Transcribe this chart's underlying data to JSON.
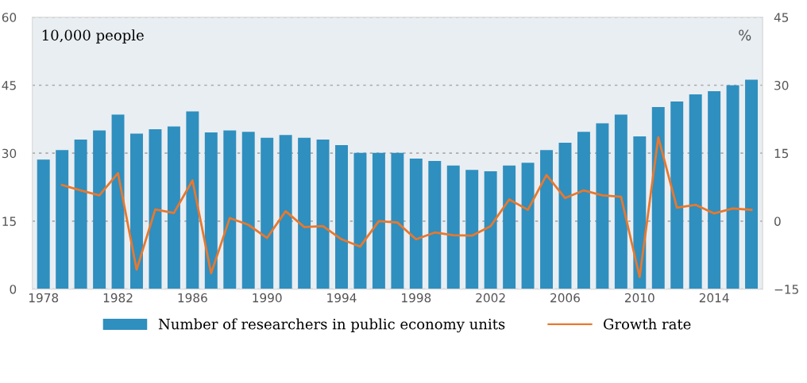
{
  "chart_data": {
    "type": "bar",
    "categories": [
      "1978",
      null,
      null,
      null,
      "1982",
      null,
      null,
      null,
      "1986",
      null,
      null,
      null,
      "1990",
      null,
      null,
      null,
      "1994",
      null,
      null,
      null,
      "1998",
      null,
      null,
      null,
      "2002",
      null,
      null,
      null,
      "2006",
      null,
      null,
      null,
      "2010",
      null,
      null,
      null,
      "2014",
      null,
      null
    ],
    "ylabel": "10,000 people",
    "y2label": "%",
    "series": [
      {
        "name": "Number of researchers in public economy units",
        "color": "#2f8fbf",
        "values": [
          28.6,
          30.7,
          33.0,
          35.0,
          38.5,
          34.3,
          35.3,
          35.9,
          39.2,
          34.6,
          35.0,
          34.7,
          33.4,
          34.0,
          33.4,
          33.0,
          31.8,
          30.1,
          30.1,
          30.1,
          28.8,
          28.3,
          27.3,
          26.3,
          26.0,
          27.3,
          27.9,
          30.7,
          32.3,
          34.7,
          36.6,
          38.5,
          33.7,
          40.2,
          41.4,
          43.0,
          43.7,
          45.0,
          46.2
        ]
      },
      {
        "name": "Growth rate",
        "type": "line",
        "axis": "y2",
        "color": "#e8782e",
        "values": [
          null,
          8.0,
          6.8,
          5.7,
          10.6,
          -10.7,
          2.6,
          1.8,
          9.0,
          -11.5,
          0.7,
          -0.8,
          -3.7,
          2.2,
          -1.3,
          -1.1,
          -4.0,
          -5.6,
          0.0,
          -0.3,
          -4.0,
          -2.5,
          -3.1,
          -3.2,
          -1.1,
          4.8,
          2.5,
          10.2,
          5.1,
          6.8,
          5.7,
          5.4,
          -12.3,
          18.5,
          3.0,
          3.6,
          1.7,
          2.8,
          2.5
        ]
      }
    ],
    "ylim": [
      0,
      60
    ],
    "yticks": [
      0,
      15,
      30,
      45,
      60
    ],
    "y2lim": [
      -15,
      45
    ],
    "y2ticks": [
      {
        "value": -15,
        "label": "−15"
      },
      0,
      15,
      30,
      45
    ],
    "grid": "y",
    "legend": "bottom",
    "marker": "none",
    "line_style": "solid"
  }
}
